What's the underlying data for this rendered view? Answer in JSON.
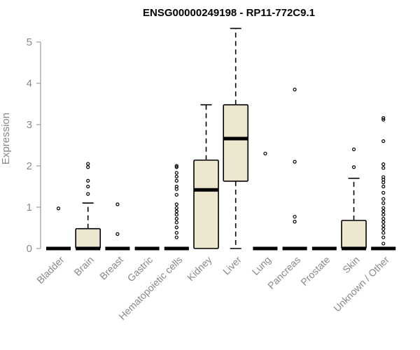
{
  "chart_data": {
    "type": "boxplot",
    "title": "ENSG00000249198 - RP11-772C9.1",
    "xlabel": "",
    "ylabel": "Expression",
    "ylim": [
      0,
      5.3
    ],
    "yticks": [
      0,
      1,
      2,
      3,
      4,
      5
    ],
    "grid": false,
    "box_fill": "#ede7cf",
    "categories": [
      "Bladder",
      "Brain",
      "Breast",
      "Gastric",
      "Hematopoietic cells",
      "Kidney",
      "Liver",
      "Lung",
      "Pancreas",
      "Prostate",
      "Skin",
      "Unknown / Other"
    ],
    "boxes": [
      {
        "min": 0,
        "q1": 0,
        "median": 0,
        "q3": 0,
        "max": 0,
        "outliers": [
          0.97
        ]
      },
      {
        "min": 0,
        "q1": 0,
        "median": 0,
        "q3": 0.48,
        "max": 1.1,
        "outliers": [
          1.32,
          1.5,
          1.64,
          1.97,
          2.05
        ]
      },
      {
        "min": 0,
        "q1": 0,
        "median": 0,
        "q3": 0,
        "max": 0,
        "outliers": [
          0.35,
          1.07
        ]
      },
      {
        "min": 0,
        "q1": 0,
        "median": 0,
        "q3": 0,
        "max": 0,
        "outliers": []
      },
      {
        "min": 0,
        "q1": 0,
        "median": 0,
        "q3": 0,
        "max": 0,
        "outliers": [
          0.27,
          0.38,
          0.51,
          0.63,
          0.72,
          0.82,
          0.9,
          0.98,
          1.07,
          1.3,
          1.44,
          1.5,
          1.64,
          1.74,
          1.83,
          1.97,
          2.0
        ]
      },
      {
        "min": 0,
        "q1": 0,
        "median": 1.42,
        "q3": 2.14,
        "max": 3.48,
        "outliers": []
      },
      {
        "min": 0,
        "q1": 1.63,
        "median": 2.66,
        "q3": 3.48,
        "max": 5.33,
        "outliers": []
      },
      {
        "min": 0,
        "q1": 0,
        "median": 0,
        "q3": 0,
        "max": 0,
        "outliers": [
          2.3
        ]
      },
      {
        "min": 0,
        "q1": 0,
        "median": 0,
        "q3": 0,
        "max": 0,
        "outliers": [
          0.65,
          0.77,
          2.1,
          3.85
        ]
      },
      {
        "min": 0,
        "q1": 0,
        "median": 0,
        "q3": 0,
        "max": 0,
        "outliers": []
      },
      {
        "min": 0,
        "q1": 0,
        "median": 0,
        "q3": 0.68,
        "max": 1.7,
        "outliers": [
          1.97,
          2.4
        ]
      },
      {
        "min": 0,
        "q1": 0,
        "median": 0,
        "q3": 0,
        "max": 0,
        "outliers": [
          0.12,
          0.27,
          0.38,
          0.47,
          0.55,
          0.64,
          0.72,
          0.82,
          0.9,
          0.98,
          1.1,
          1.2,
          1.35,
          1.5,
          1.6,
          1.67,
          1.73,
          1.95,
          2.04,
          2.6,
          3.12,
          3.16
        ]
      }
    ]
  }
}
